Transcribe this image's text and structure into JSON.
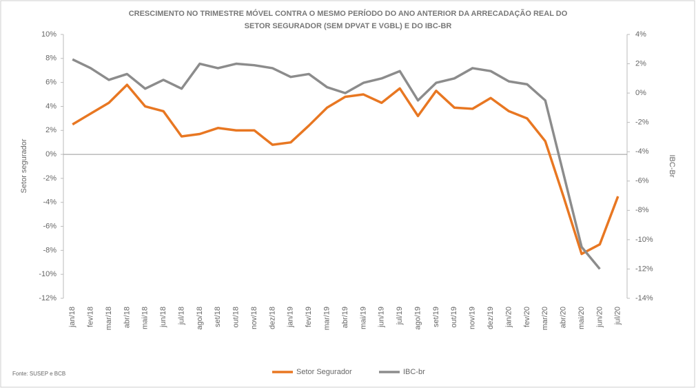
{
  "chart_data": {
    "type": "line",
    "title": [
      "CRESCIMENTO NO TRIMESTRE  MÓVEL CONTRA O MESMO PERÍODO DO ANO ANTERIOR DA ARRECADAÇÃO REAL DO",
      "SETOR SEGURADOR (SEM DPVAT E VGBL) E DO IBC-BR"
    ],
    "ylabel": "Setor segurador",
    "y2label": "IBC-Br",
    "source": "Fonte: SUSEP e BCB",
    "categories": [
      "jan/18",
      "fev/18",
      "mar/18",
      "abr/18",
      "mai/18",
      "jun/18",
      "jul/18",
      "ago/18",
      "set/18",
      "out/18",
      "nov/18",
      "dez/18",
      "jan/19",
      "fev/19",
      "mar/19",
      "abr/19",
      "mai/19",
      "jun/19",
      "jul/19",
      "ago/19",
      "set/19",
      "out/19",
      "nov/19",
      "dez/19",
      "jan/20",
      "fev/20",
      "mar/20",
      "abr/20",
      "mai/20",
      "jun/20",
      "jul/20"
    ],
    "series": [
      {
        "name": "Setor Segurador",
        "color": "#e87722",
        "axis": "y",
        "values": [
          2.5,
          3.4,
          4.3,
          5.8,
          4.0,
          3.6,
          1.5,
          1.7,
          2.2,
          2.0,
          2.0,
          0.8,
          1.0,
          2.4,
          3.9,
          4.8,
          5.0,
          4.3,
          5.5,
          3.2,
          5.3,
          3.9,
          3.8,
          4.7,
          3.6,
          3.0,
          1.1,
          -3.5,
          -8.3,
          -7.5,
          -3.5
        ]
      },
      {
        "name": "IBC-br",
        "color": "#8c8c8c",
        "axis": "y2",
        "values": [
          2.3,
          1.7,
          0.9,
          1.3,
          0.3,
          0.9,
          0.3,
          2.0,
          1.7,
          2.0,
          1.9,
          1.7,
          1.1,
          1.3,
          0.4,
          0.0,
          0.7,
          1.0,
          1.5,
          -0.5,
          0.7,
          1.0,
          1.7,
          1.5,
          0.8,
          0.6,
          -0.5,
          -5.5,
          -10.5,
          -12.0,
          null
        ]
      }
    ],
    "ylim": [
      -12,
      10
    ],
    "yticks": [
      {
        "value": -12,
        "label": "-12%"
      },
      {
        "value": -10,
        "label": "-10%"
      },
      {
        "value": -8,
        "label": "-8%"
      },
      {
        "value": -6,
        "label": "-6%"
      },
      {
        "value": -4,
        "label": "-4%"
      },
      {
        "value": -2,
        "label": "-2%"
      },
      {
        "value": 0,
        "label": "0%"
      },
      {
        "value": 2,
        "label": "2%"
      },
      {
        "value": 4,
        "label": "4%"
      },
      {
        "value": 6,
        "label": "6%"
      },
      {
        "value": 8,
        "label": "8%"
      },
      {
        "value": 10,
        "label": "10%"
      }
    ],
    "y2lim": [
      -14,
      4
    ],
    "y2ticks": [
      {
        "value": -14,
        "label": "-14%"
      },
      {
        "value": -12,
        "label": "-12%"
      },
      {
        "value": -10,
        "label": "-10%"
      },
      {
        "value": -8,
        "label": "-8%"
      },
      {
        "value": -6,
        "label": "-6%"
      },
      {
        "value": -4,
        "label": "-4%"
      },
      {
        "value": -2,
        "label": "-2%"
      },
      {
        "value": 0,
        "label": "0%"
      },
      {
        "value": 2,
        "label": "2%"
      },
      {
        "value": 4,
        "label": "4%"
      }
    ],
    "legend": "bottom"
  }
}
